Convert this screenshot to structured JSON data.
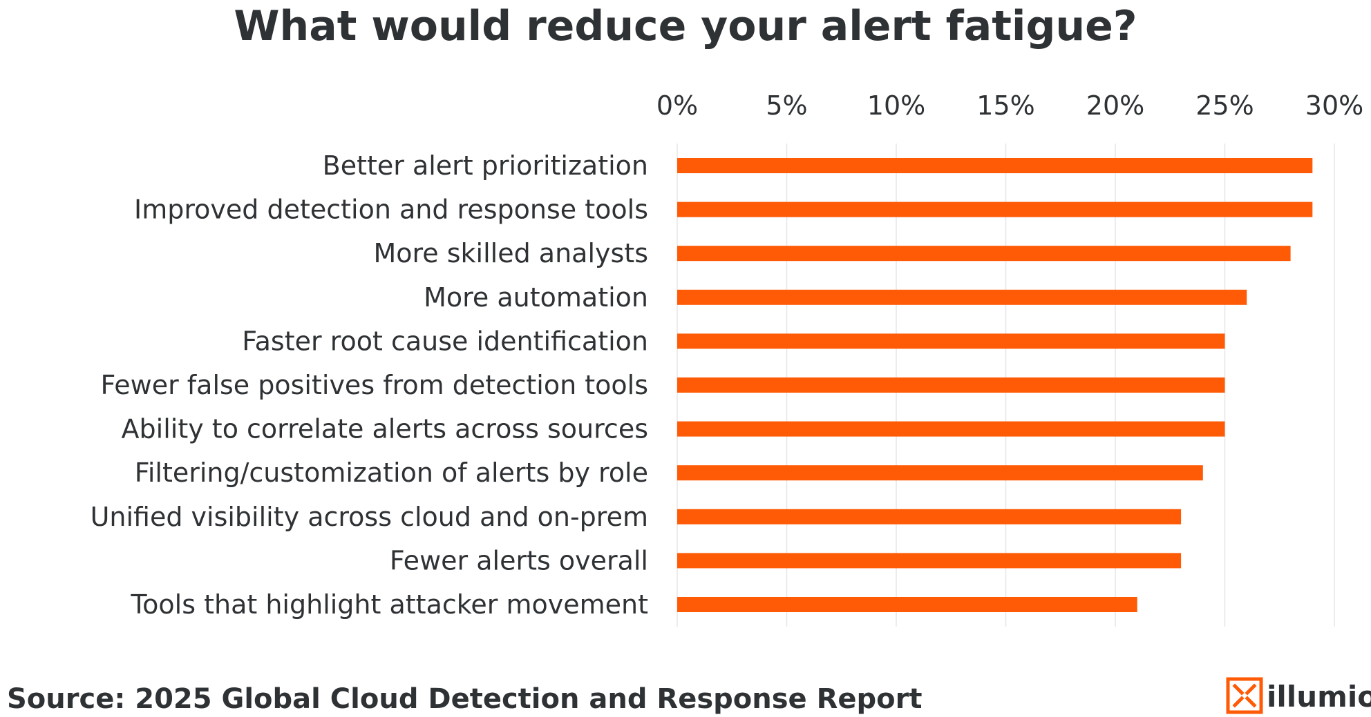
{
  "chart_data": {
    "type": "bar",
    "orientation": "horizontal",
    "title": "What would reduce your alert fatigue?",
    "categories": [
      "Better alert prioritization",
      "Improved detection and response tools",
      "More skilled analysts",
      "More automation",
      "Faster root cause identification",
      "Fewer false positives from detection tools",
      "Ability to correlate alerts across sources",
      "Filtering/customization of alerts by role",
      "Unified visibility across cloud and on-prem",
      "Fewer alerts overall",
      "Tools that highlight attacker movement"
    ],
    "values": [
      29,
      29,
      28,
      26,
      25,
      25,
      25,
      24,
      23,
      23,
      21
    ],
    "xlim": [
      0,
      30
    ],
    "xticks": [
      0,
      5,
      10,
      15,
      20,
      25,
      30
    ],
    "tick_labels": [
      "0%",
      "5%",
      "10%",
      "15%",
      "20%",
      "25%",
      "30%"
    ],
    "axis_position": "top",
    "grid": true,
    "bar_color": "#ff5a06",
    "text_color": "#2f3235",
    "grid_color": "#e6e6e6"
  },
  "footer": {
    "source_text": "Source:  2025 Global Cloud Detection and Response Report",
    "brand_name": "illumio",
    "brand_color": "#ff5a06"
  }
}
